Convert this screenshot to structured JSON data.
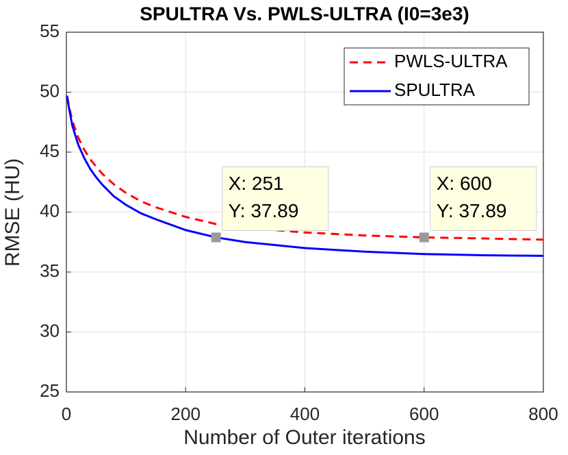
{
  "chart_data": {
    "type": "line",
    "title": "SPULTRA Vs. PWLS-ULTRA (I0=3e3)",
    "xlabel": "Number of Outer iterations",
    "ylabel": "RMSE (HU)",
    "x": [
      1,
      5,
      10,
      20,
      30,
      40,
      50,
      60,
      80,
      100,
      125,
      150,
      200,
      251,
      300,
      400,
      500,
      600,
      700,
      800
    ],
    "series": [
      {
        "name": "PWLS-ULTRA",
        "color": "#ff0000",
        "linestyle": "dashed",
        "values": [
          49.7,
          48.7,
          47.6,
          46.2,
          45.2,
          44.4,
          43.8,
          43.2,
          42.3,
          41.6,
          40.9,
          40.4,
          39.6,
          39.0,
          38.7,
          38.3,
          38.05,
          37.89,
          37.8,
          37.7
        ]
      },
      {
        "name": "SPULTRA",
        "color": "#0000ff",
        "linestyle": "solid",
        "values": [
          49.7,
          48.5,
          47.2,
          45.6,
          44.5,
          43.6,
          42.9,
          42.3,
          41.3,
          40.6,
          39.9,
          39.4,
          38.5,
          37.89,
          37.5,
          37.0,
          36.7,
          36.5,
          36.4,
          36.35
        ]
      }
    ],
    "xlim": [
      0,
      800
    ],
    "xticks": [
      0,
      200,
      400,
      600,
      800
    ],
    "ylim": [
      25,
      55
    ],
    "yticks": [
      25,
      30,
      35,
      40,
      45,
      50,
      55
    ],
    "grid": true,
    "legend": "top-right",
    "annotations": [
      {
        "x": 251,
        "y": 37.89,
        "label_x": "X: 251",
        "label_y": "Y: 37.89"
      },
      {
        "x": 600,
        "y": 37.89,
        "label_x": "X: 600",
        "label_y": "Y: 37.89"
      }
    ]
  }
}
